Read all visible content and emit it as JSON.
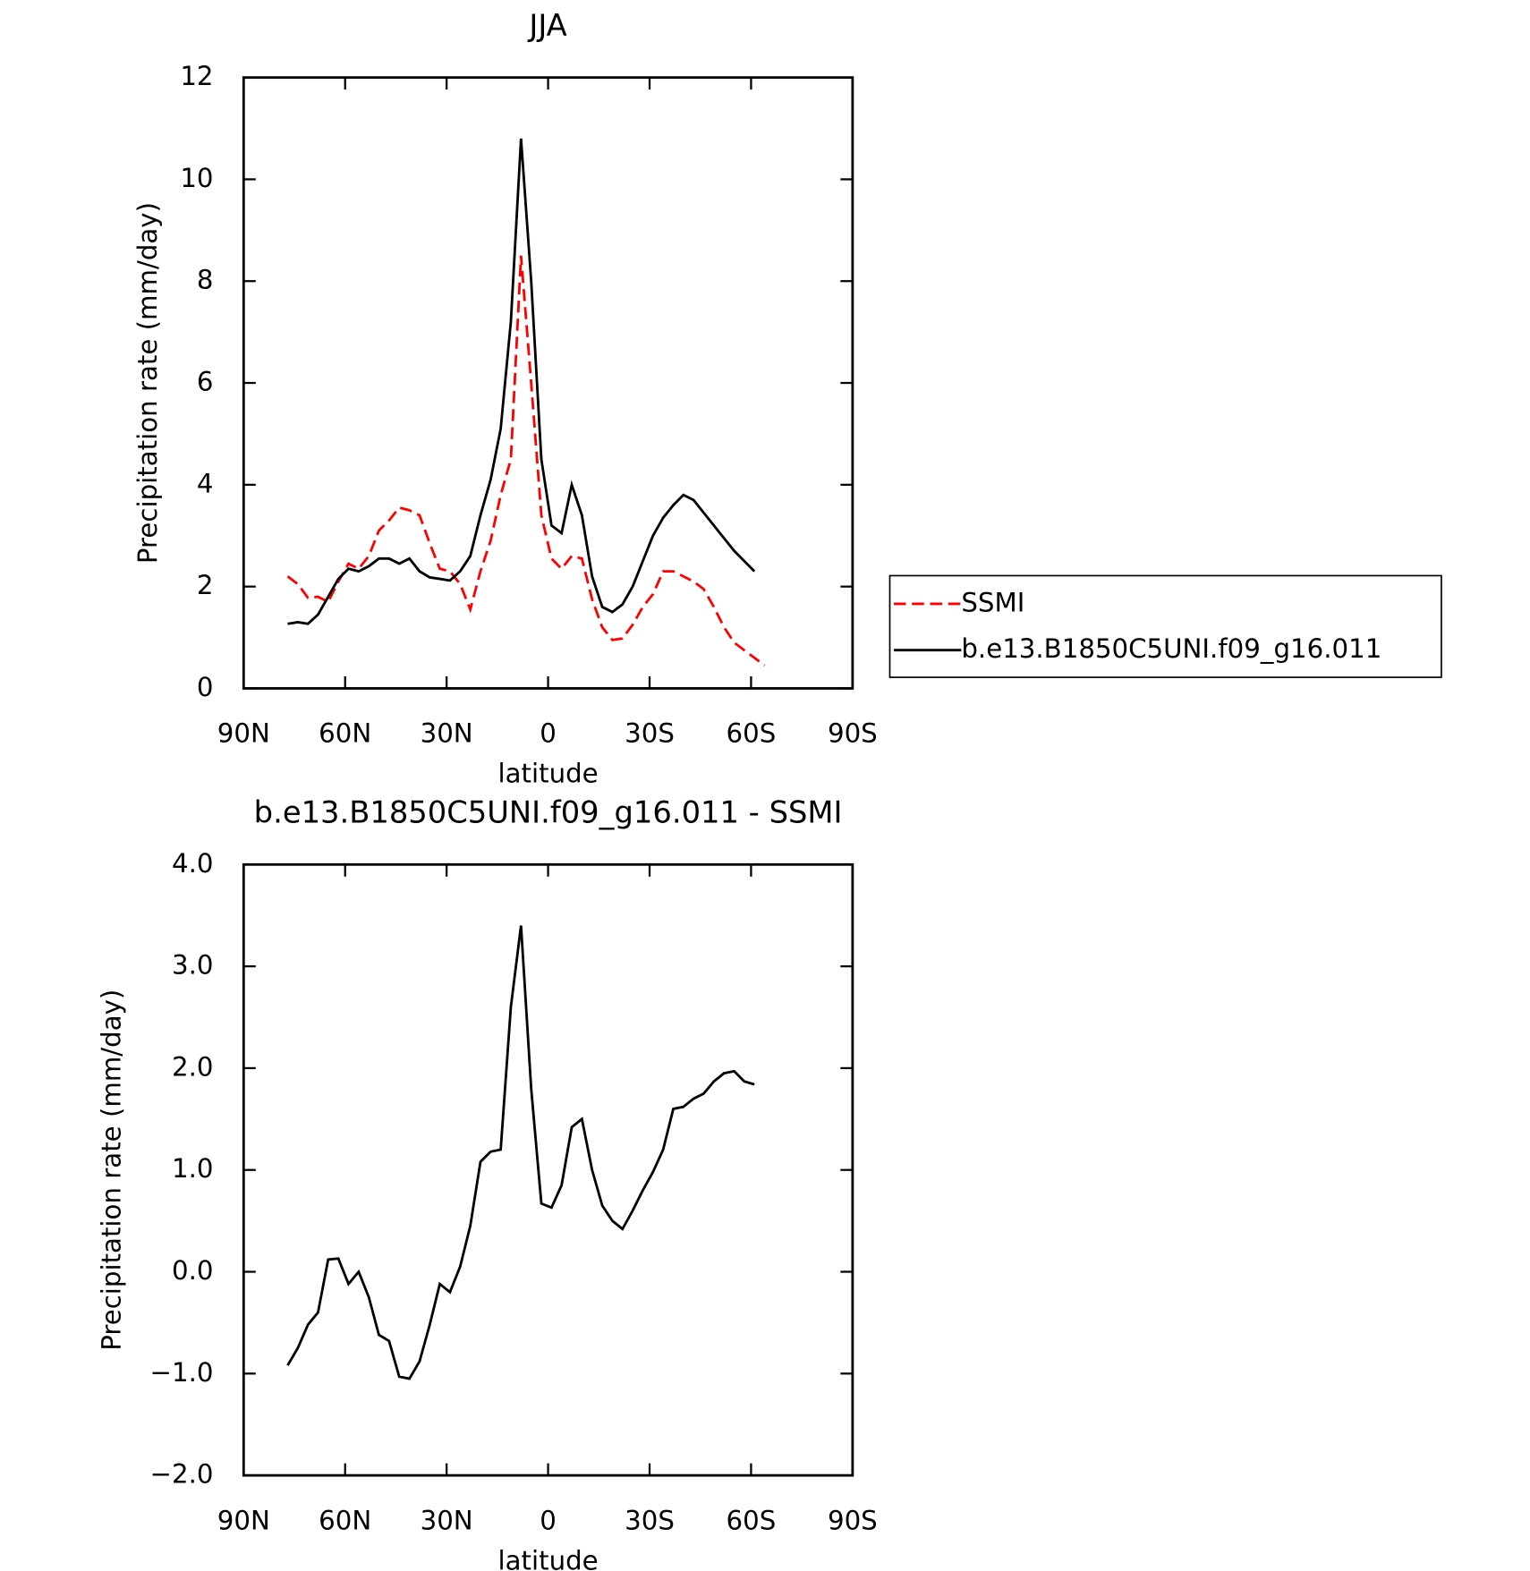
{
  "chart_data": [
    {
      "type": "line",
      "title": "JJA",
      "xlabel": "latitude",
      "ylabel": "Precipitation rate (mm/day)",
      "x": [
        77,
        74,
        71,
        68,
        65,
        62,
        59,
        56,
        53,
        50,
        47,
        44,
        41,
        38,
        35,
        32,
        29,
        26,
        23,
        20,
        17,
        14,
        11,
        8,
        5,
        2,
        -1,
        -4,
        -7,
        -10,
        -13,
        -16,
        -19,
        -22,
        -25,
        -28,
        -31,
        -34,
        -37,
        -40,
        -43,
        -46,
        -49,
        -52,
        -55,
        -58,
        -61,
        -64
      ],
      "series": [
        {
          "name": "SSMI",
          "color": "#ff0000",
          "line_style": "dashed",
          "values": [
            2.2,
            2.05,
            1.78,
            1.8,
            1.7,
            2.1,
            2.45,
            2.35,
            2.6,
            3.1,
            3.3,
            3.55,
            3.5,
            3.4,
            2.85,
            2.35,
            2.3,
            2.05,
            1.55,
            2.3,
            2.9,
            3.8,
            4.5,
            8.5,
            6.0,
            3.4,
            2.55,
            2.35,
            2.6,
            2.55,
            1.75,
            1.2,
            0.95,
            0.98,
            1.25,
            1.6,
            1.85,
            2.3,
            2.3,
            2.2,
            2.1,
            1.95,
            1.6,
            1.2,
            0.9,
            0.75,
            0.6,
            0.45
          ]
        },
        {
          "name": "b.e13.B1850C5UNI.f09_g16.011",
          "color": "#000000",
          "line_style": "solid",
          "values": [
            1.27,
            1.3,
            1.27,
            1.45,
            1.8,
            2.15,
            2.35,
            2.3,
            2.4,
            2.55,
            2.55,
            2.45,
            2.55,
            2.3,
            2.18,
            2.15,
            2.12,
            2.3,
            2.6,
            3.4,
            4.1,
            5.1,
            7.2,
            10.8,
            8.0,
            4.5,
            3.2,
            3.05,
            4.0,
            3.4,
            2.2,
            1.6,
            1.5,
            1.65,
            2.0,
            2.5,
            3.0,
            3.35,
            3.6,
            3.8,
            3.7,
            3.45,
            3.2,
            2.95,
            2.7,
            2.5,
            2.3,
            null
          ]
        }
      ],
      "xlim": [
        90,
        -90
      ],
      "xticks": [
        {
          "value": 90,
          "label": "90N"
        },
        {
          "value": 60,
          "label": "60N"
        },
        {
          "value": 30,
          "label": "30N"
        },
        0,
        {
          "value": -30,
          "label": "30S"
        },
        {
          "value": -60,
          "label": "60S"
        },
        {
          "value": -90,
          "label": "90S"
        }
      ],
      "ylim": [
        0,
        12
      ],
      "yticks": [
        0,
        2,
        4,
        6,
        8,
        10,
        12
      ],
      "legend": "right"
    },
    {
      "type": "line",
      "title": "b.e13.B1850C5UNI.f09_g16.011 - SSMI",
      "xlabel": "latitude",
      "ylabel": "Precipitation rate (mm/day)",
      "x": [
        77,
        74,
        71,
        68,
        65,
        62,
        59,
        56,
        53,
        50,
        47,
        44,
        41,
        38,
        35,
        32,
        29,
        26,
        23,
        20,
        17,
        14,
        11,
        8,
        5,
        2,
        -1,
        -4,
        -7,
        -10,
        -13,
        -16,
        -19,
        -22,
        -25,
        -28,
        -31,
        -34,
        -37,
        -40,
        -43,
        -46,
        -49,
        -52,
        -55,
        -58,
        -61,
        -64
      ],
      "series": [
        {
          "color": "#000000",
          "line_style": "solid",
          "values": [
            -0.92,
            -0.75,
            -0.52,
            -0.4,
            0.12,
            0.13,
            -0.12,
            0.0,
            -0.25,
            -0.62,
            -0.68,
            -1.03,
            -1.05,
            -0.88,
            -0.52,
            -0.12,
            -0.2,
            0.05,
            0.45,
            1.08,
            1.18,
            1.2,
            2.6,
            3.4,
            1.8,
            0.67,
            0.63,
            0.85,
            1.42,
            1.5,
            1.0,
            0.65,
            0.5,
            0.42,
            0.6,
            0.8,
            0.98,
            1.2,
            1.6,
            1.62,
            1.7,
            1.75,
            1.87,
            1.95,
            1.97,
            1.87,
            1.84,
            null
          ]
        }
      ],
      "xlim": [
        90,
        -90
      ],
      "xticks": [
        {
          "value": 90,
          "label": "90N"
        },
        {
          "value": 60,
          "label": "60N"
        },
        {
          "value": 30,
          "label": "30N"
        },
        0,
        {
          "value": -30,
          "label": "30S"
        },
        {
          "value": -60,
          "label": "60S"
        },
        {
          "value": -90,
          "label": "90S"
        }
      ],
      "ylim": [
        -2,
        4
      ],
      "yticks": [
        {
          "value": -2,
          "label": "−2.0"
        },
        {
          "value": -1,
          "label": "−1.0"
        },
        {
          "value": 0,
          "label": "0.0"
        },
        {
          "value": 1,
          "label": "1.0"
        },
        {
          "value": 2,
          "label": "2.0"
        },
        {
          "value": 3,
          "label": "3.0"
        },
        {
          "value": 4,
          "label": "4.0"
        }
      ]
    }
  ]
}
